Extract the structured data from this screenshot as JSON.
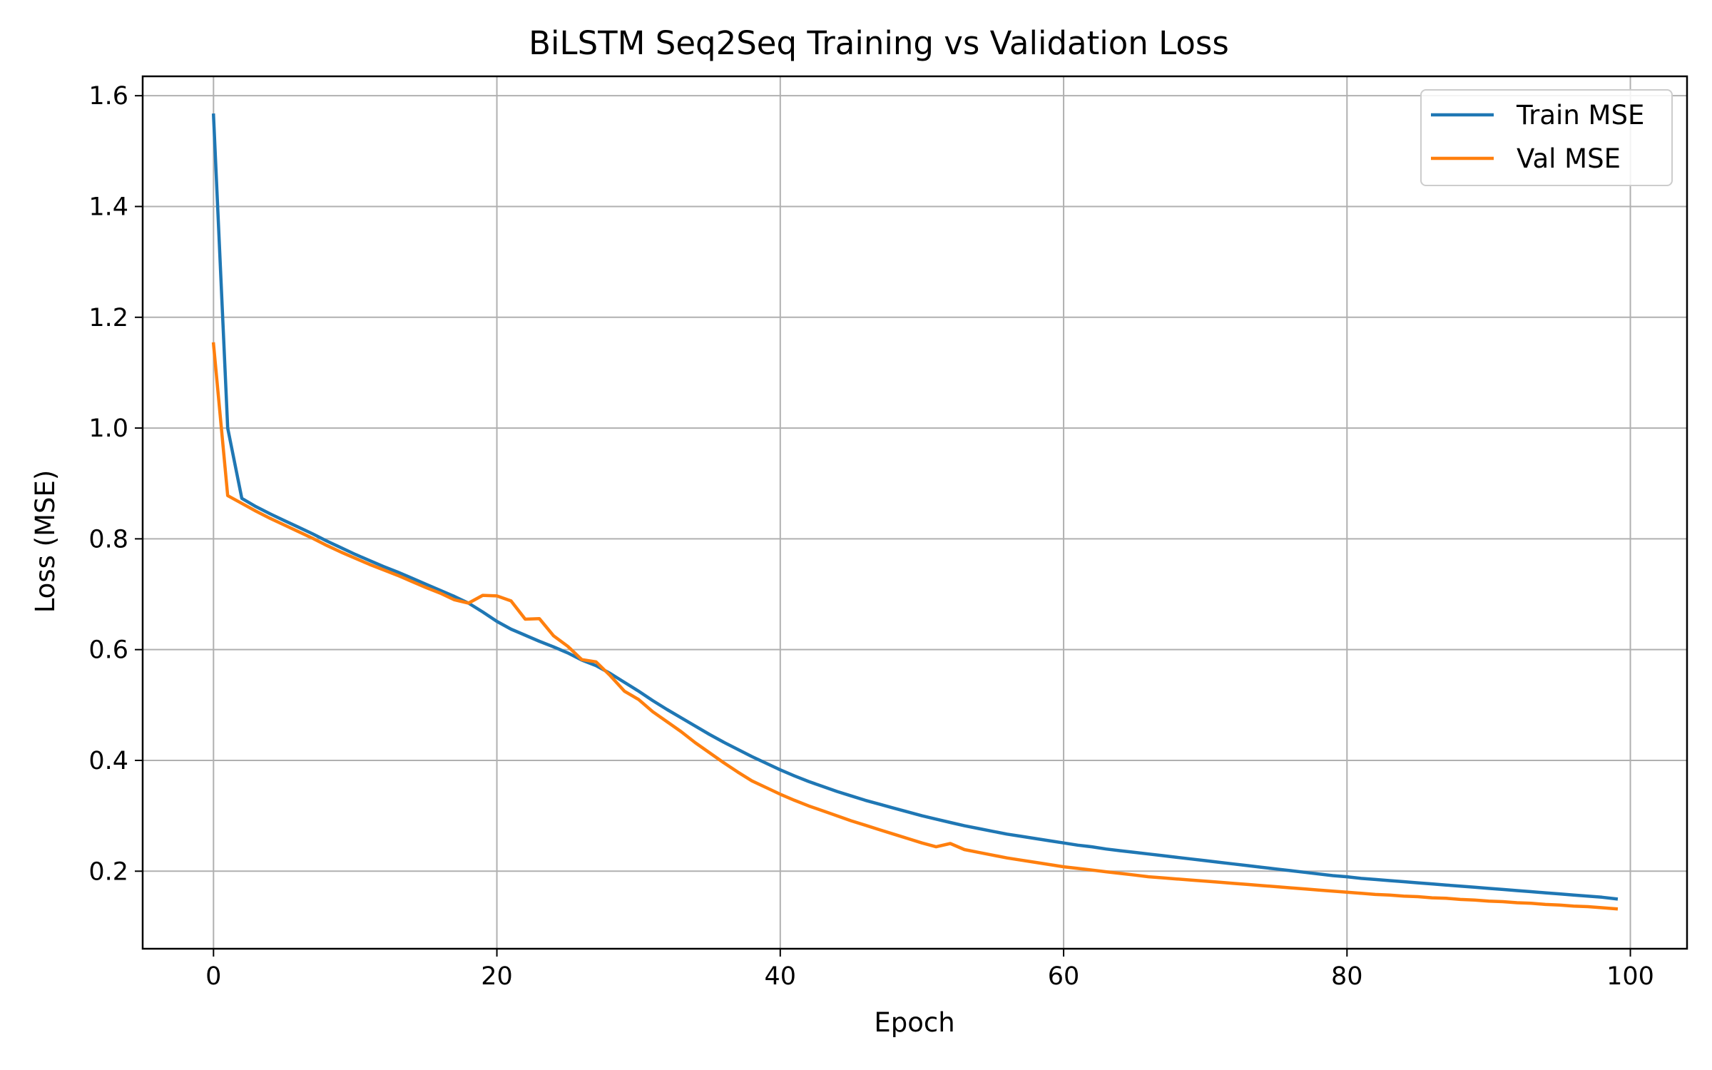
{
  "chart_data": {
    "type": "line",
    "title": "BiLSTM Seq2Seq Training vs Validation Loss",
    "xlabel": "Epoch",
    "ylabel": "Loss (MSE)",
    "xlim": [
      -5,
      104
    ],
    "ylim": [
      0.06,
      1.635
    ],
    "xticks": [
      0,
      20,
      40,
      60,
      80,
      100
    ],
    "yticks": [
      0.2,
      0.4,
      0.6,
      0.8,
      1.0,
      1.2,
      1.4,
      1.6
    ],
    "xtick_labels": [
      "0",
      "20",
      "40",
      "60",
      "80",
      "100"
    ],
    "ytick_labels": [
      "0.2",
      "0.4",
      "0.6",
      "0.8",
      "1.0",
      "1.2",
      "1.4",
      "1.6"
    ],
    "grid": true,
    "legend_position": "top-right",
    "series": [
      {
        "name": "Train MSE",
        "color": "#1f77b4",
        "x": [
          0,
          1,
          2,
          3,
          4,
          5,
          6,
          7,
          8,
          9,
          10,
          11,
          12,
          13,
          14,
          15,
          16,
          17,
          18,
          19,
          20,
          21,
          22,
          23,
          24,
          25,
          26,
          27,
          28,
          29,
          30,
          31,
          32,
          33,
          34,
          35,
          36,
          37,
          38,
          39,
          40,
          41,
          42,
          43,
          44,
          45,
          46,
          47,
          48,
          49,
          50,
          51,
          52,
          53,
          54,
          55,
          56,
          57,
          58,
          59,
          60,
          61,
          62,
          63,
          64,
          65,
          66,
          67,
          68,
          69,
          70,
          71,
          72,
          73,
          74,
          75,
          76,
          77,
          78,
          79,
          80,
          81,
          82,
          83,
          84,
          85,
          86,
          87,
          88,
          89,
          90,
          91,
          92,
          93,
          94,
          95,
          96,
          97,
          98,
          99
        ],
        "values": [
          1.565,
          1.0,
          0.873,
          0.858,
          0.845,
          0.833,
          0.821,
          0.809,
          0.796,
          0.784,
          0.772,
          0.761,
          0.75,
          0.74,
          0.729,
          0.718,
          0.707,
          0.696,
          0.684,
          0.668,
          0.651,
          0.637,
          0.626,
          0.615,
          0.605,
          0.594,
          0.581,
          0.571,
          0.557,
          0.541,
          0.525,
          0.508,
          0.492,
          0.477,
          0.462,
          0.447,
          0.433,
          0.42,
          0.407,
          0.395,
          0.383,
          0.372,
          0.362,
          0.353,
          0.344,
          0.336,
          0.328,
          0.321,
          0.314,
          0.307,
          0.3,
          0.294,
          0.288,
          0.282,
          0.277,
          0.272,
          0.267,
          0.263,
          0.259,
          0.255,
          0.251,
          0.247,
          0.244,
          0.24,
          0.237,
          0.234,
          0.231,
          0.228,
          0.225,
          0.222,
          0.219,
          0.216,
          0.213,
          0.21,
          0.207,
          0.204,
          0.201,
          0.198,
          0.195,
          0.192,
          0.19,
          0.187,
          0.185,
          0.183,
          0.181,
          0.179,
          0.177,
          0.175,
          0.173,
          0.171,
          0.169,
          0.167,
          0.165,
          0.163,
          0.161,
          0.159,
          0.157,
          0.155,
          0.153,
          0.15
        ]
      },
      {
        "name": "Val MSE",
        "color": "#ff7f0e",
        "x": [
          0,
          1,
          2,
          3,
          4,
          5,
          6,
          7,
          8,
          9,
          10,
          11,
          12,
          13,
          14,
          15,
          16,
          17,
          18,
          19,
          20,
          21,
          22,
          23,
          24,
          25,
          26,
          27,
          28,
          29,
          30,
          31,
          32,
          33,
          34,
          35,
          36,
          37,
          38,
          39,
          40,
          41,
          42,
          43,
          44,
          45,
          46,
          47,
          48,
          49,
          50,
          51,
          52,
          53,
          54,
          55,
          56,
          57,
          58,
          59,
          60,
          61,
          62,
          63,
          64,
          65,
          66,
          67,
          68,
          69,
          70,
          71,
          72,
          73,
          74,
          75,
          76,
          77,
          78,
          79,
          80,
          81,
          82,
          83,
          84,
          85,
          86,
          87,
          88,
          89,
          90,
          91,
          92,
          93,
          94,
          95,
          96,
          97,
          98,
          99
        ],
        "values": [
          1.152,
          0.878,
          0.864,
          0.85,
          0.837,
          0.825,
          0.813,
          0.801,
          0.788,
          0.776,
          0.765,
          0.754,
          0.744,
          0.734,
          0.723,
          0.712,
          0.702,
          0.69,
          0.684,
          0.698,
          0.697,
          0.688,
          0.655,
          0.656,
          0.625,
          0.606,
          0.582,
          0.578,
          0.553,
          0.525,
          0.51,
          0.488,
          0.47,
          0.452,
          0.432,
          0.414,
          0.396,
          0.379,
          0.363,
          0.351,
          0.339,
          0.328,
          0.318,
          0.309,
          0.3,
          0.291,
          0.283,
          0.275,
          0.267,
          0.259,
          0.251,
          0.244,
          0.25,
          0.239,
          0.234,
          0.229,
          0.224,
          0.22,
          0.216,
          0.212,
          0.208,
          0.205,
          0.202,
          0.199,
          0.196,
          0.193,
          0.19,
          0.188,
          0.186,
          0.184,
          0.182,
          0.18,
          0.178,
          0.176,
          0.174,
          0.172,
          0.17,
          0.168,
          0.166,
          0.164,
          0.162,
          0.16,
          0.158,
          0.157,
          0.155,
          0.154,
          0.152,
          0.151,
          0.149,
          0.148,
          0.146,
          0.145,
          0.143,
          0.142,
          0.14,
          0.139,
          0.137,
          0.136,
          0.134,
          0.132
        ]
      }
    ]
  }
}
